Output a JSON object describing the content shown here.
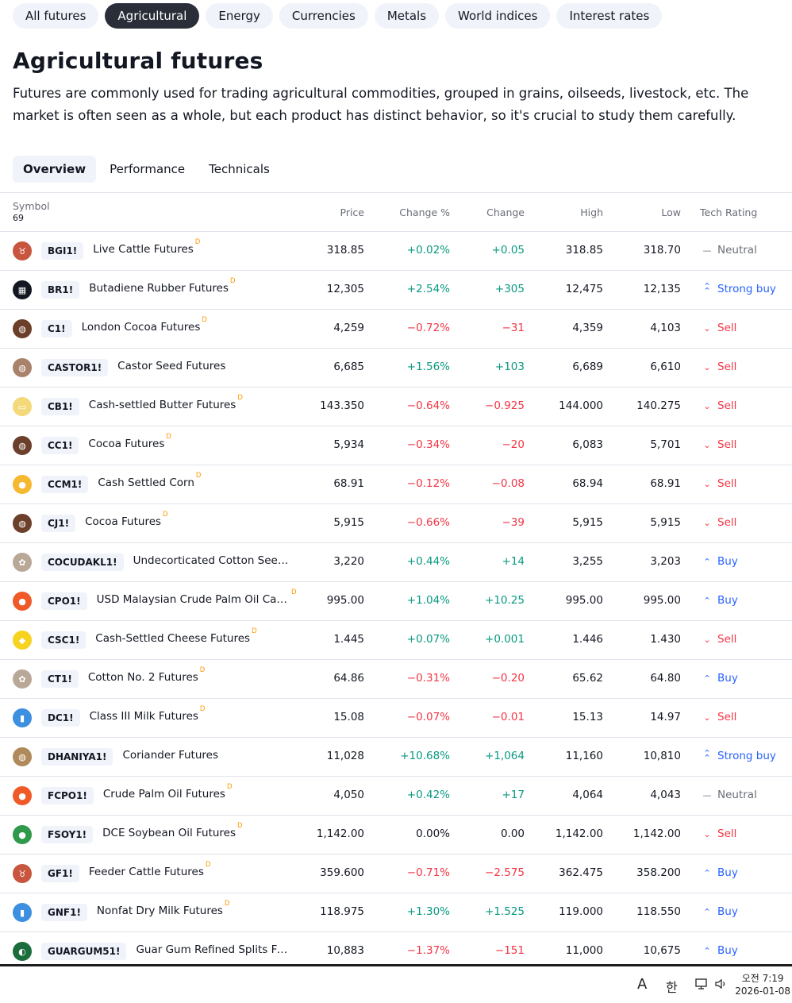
{
  "categories": [
    "All futures",
    "Agricultural",
    "Energy",
    "Currencies",
    "Metals",
    "World indices",
    "Interest rates"
  ],
  "active_category": "Agricultural",
  "title": "Agricultural futures",
  "description": "Futures are commonly used for trading agricultural commodities, grouped in grains, oilseeds, livestock, etc. The market is often seen as a whole, but each product has distinct behavior, so it's crucial to study them carefully.",
  "view_tabs": [
    "Overview",
    "Performance",
    "Technicals"
  ],
  "active_view": "Overview",
  "table": {
    "headers": {
      "symbol": "Symbol",
      "count": "69",
      "price": "Price",
      "change_pct": "Change %",
      "change": "Change",
      "high": "High",
      "low": "Low",
      "rating": "Tech Rating"
    },
    "delayed_mark": "D",
    "rows": [
      {
        "ticker": "BGI1!",
        "name": "Live Cattle Futures",
        "delayed": true,
        "price": "318.85",
        "change_pct": "+0.02%",
        "change": "+0.05",
        "high": "318.85",
        "low": "318.70",
        "rating": "Neutral",
        "dir": "pos",
        "rating_type": "neutral",
        "logo": {
          "icon": "cattle-icon",
          "color": "#c8553d",
          "glyph": "♉"
        }
      },
      {
        "ticker": "BR1!",
        "name": "Butadiene Rubber Futures",
        "delayed": true,
        "price": "12,305",
        "change_pct": "+2.54%",
        "change": "+305",
        "high": "12,475",
        "low": "12,135",
        "rating": "Strong buy",
        "dir": "pos",
        "rating_type": "strong-buy",
        "logo": {
          "icon": "exchange-logo-icon",
          "color": "#131722",
          "glyph": "▦"
        }
      },
      {
        "ticker": "C1!",
        "name": "London Cocoa Futures",
        "delayed": true,
        "price": "4,259",
        "change_pct": "−0.72%",
        "change": "−31",
        "high": "4,359",
        "low": "4,103",
        "rating": "Sell",
        "dir": "neg",
        "rating_type": "sell",
        "logo": {
          "icon": "cocoa-bean-icon",
          "color": "#6b3f2a",
          "glyph": "◍"
        }
      },
      {
        "ticker": "CASTOR1!",
        "name": "Castor Seed Futures",
        "delayed": false,
        "price": "6,685",
        "change_pct": "+1.56%",
        "change": "+103",
        "high": "6,689",
        "low": "6,610",
        "rating": "Sell",
        "dir": "pos",
        "rating_type": "sell",
        "logo": {
          "icon": "seed-icon",
          "color": "#a8826a",
          "glyph": "◍"
        }
      },
      {
        "ticker": "CB1!",
        "name": "Cash-settled Butter Futures",
        "delayed": true,
        "price": "143.350",
        "change_pct": "−0.64%",
        "change": "−0.925",
        "high": "144.000",
        "low": "140.275",
        "rating": "Sell",
        "dir": "neg",
        "rating_type": "sell",
        "logo": {
          "icon": "butter-icon",
          "color": "#f3d97a",
          "glyph": "▭"
        }
      },
      {
        "ticker": "CC1!",
        "name": "Cocoa Futures",
        "delayed": true,
        "price": "5,934",
        "change_pct": "−0.34%",
        "change": "−20",
        "high": "6,083",
        "low": "5,701",
        "rating": "Sell",
        "dir": "neg",
        "rating_type": "sell",
        "logo": {
          "icon": "cocoa-bean-icon",
          "color": "#6b3f2a",
          "glyph": "◍"
        }
      },
      {
        "ticker": "CCM1!",
        "name": "Cash Settled Corn",
        "delayed": true,
        "price": "68.91",
        "change_pct": "−0.12%",
        "change": "−0.08",
        "high": "68.94",
        "low": "68.91",
        "rating": "Sell",
        "dir": "neg",
        "rating_type": "sell",
        "logo": {
          "icon": "corn-icon",
          "color": "#f5b82e",
          "glyph": "●"
        }
      },
      {
        "ticker": "CJ1!",
        "name": "Cocoa Futures",
        "delayed": true,
        "price": "5,915",
        "change_pct": "−0.66%",
        "change": "−39",
        "high": "5,915",
        "low": "5,915",
        "rating": "Sell",
        "dir": "neg",
        "rating_type": "sell",
        "logo": {
          "icon": "cocoa-bean-icon",
          "color": "#6b3f2a",
          "glyph": "◍"
        }
      },
      {
        "ticker": "COCUDAKL1!",
        "name": "Undecorticated Cotton Seed Oi…",
        "delayed": false,
        "price": "3,220",
        "change_pct": "+0.44%",
        "change": "+14",
        "high": "3,255",
        "low": "3,203",
        "rating": "Buy",
        "dir": "pos",
        "rating_type": "buy",
        "logo": {
          "icon": "cotton-icon",
          "color": "#b9a898",
          "glyph": "✿"
        }
      },
      {
        "ticker": "CPO1!",
        "name": "USD Malaysian Crude Palm Oil Cale…",
        "delayed": true,
        "price": "995.00",
        "change_pct": "+1.04%",
        "change": "+10.25",
        "high": "995.00",
        "low": "995.00",
        "rating": "Buy",
        "dir": "pos",
        "rating_type": "buy",
        "logo": {
          "icon": "oil-drop-icon",
          "color": "#f05a28",
          "glyph": "●"
        }
      },
      {
        "ticker": "CSC1!",
        "name": "Cash-Settled Cheese Futures",
        "delayed": true,
        "price": "1.445",
        "change_pct": "+0.07%",
        "change": "+0.001",
        "high": "1.446",
        "low": "1.430",
        "rating": "Sell",
        "dir": "pos",
        "rating_type": "sell",
        "logo": {
          "icon": "cheese-icon",
          "color": "#f7d21e",
          "glyph": "◆"
        }
      },
      {
        "ticker": "CT1!",
        "name": "Cotton No. 2 Futures",
        "delayed": true,
        "price": "64.86",
        "change_pct": "−0.31%",
        "change": "−0.20",
        "high": "65.62",
        "low": "64.80",
        "rating": "Buy",
        "dir": "neg",
        "rating_type": "buy",
        "logo": {
          "icon": "cotton-icon",
          "color": "#b9a898",
          "glyph": "✿"
        }
      },
      {
        "ticker": "DC1!",
        "name": "Class III Milk Futures",
        "delayed": true,
        "price": "15.08",
        "change_pct": "−0.07%",
        "change": "−0.01",
        "high": "15.13",
        "low": "14.97",
        "rating": "Sell",
        "dir": "neg",
        "rating_type": "sell",
        "logo": {
          "icon": "milk-bottle-icon",
          "color": "#3d8fe0",
          "glyph": "▮"
        }
      },
      {
        "ticker": "DHANIYA1!",
        "name": "Coriander Futures",
        "delayed": false,
        "price": "11,028",
        "change_pct": "+10.68%",
        "change": "+1,064",
        "high": "11,160",
        "low": "10,810",
        "rating": "Strong buy",
        "dir": "pos",
        "rating_type": "strong-buy",
        "logo": {
          "icon": "seed-icon",
          "color": "#b08a5a",
          "glyph": "◍"
        }
      },
      {
        "ticker": "FCPO1!",
        "name": "Crude Palm Oil Futures",
        "delayed": true,
        "price": "4,050",
        "change_pct": "+0.42%",
        "change": "+17",
        "high": "4,064",
        "low": "4,043",
        "rating": "Neutral",
        "dir": "pos",
        "rating_type": "neutral",
        "logo": {
          "icon": "oil-drop-icon",
          "color": "#f05a28",
          "glyph": "●"
        }
      },
      {
        "ticker": "FSOY1!",
        "name": "DCE Soybean Oil Futures",
        "delayed": true,
        "price": "1,142.00",
        "change_pct": "0.00%",
        "change": "0.00",
        "high": "1,142.00",
        "low": "1,142.00",
        "rating": "Sell",
        "dir": "neu",
        "rating_type": "sell",
        "logo": {
          "icon": "oil-drop-icon",
          "color": "#2e9a4a",
          "glyph": "●"
        }
      },
      {
        "ticker": "GF1!",
        "name": "Feeder Cattle Futures",
        "delayed": true,
        "price": "359.600",
        "change_pct": "−0.71%",
        "change": "−2.575",
        "high": "362.475",
        "low": "358.200",
        "rating": "Buy",
        "dir": "neg",
        "rating_type": "buy",
        "logo": {
          "icon": "cattle-icon",
          "color": "#c8553d",
          "glyph": "♉"
        }
      },
      {
        "ticker": "GNF1!",
        "name": "Nonfat Dry Milk Futures",
        "delayed": true,
        "price": "118.975",
        "change_pct": "+1.30%",
        "change": "+1.525",
        "high": "119.000",
        "low": "118.550",
        "rating": "Buy",
        "dir": "pos",
        "rating_type": "buy",
        "logo": {
          "icon": "milk-bottle-icon",
          "color": "#3d8fe0",
          "glyph": "▮"
        }
      },
      {
        "ticker": "GUARGUM51!",
        "name": "Guar Gum Refined Splits Futures",
        "delayed": false,
        "price": "10,883",
        "change_pct": "−1.37%",
        "change": "−151",
        "high": "11,000",
        "low": "10,675",
        "rating": "Buy",
        "dir": "neg",
        "rating_type": "buy",
        "logo": {
          "icon": "exchange-logo-icon",
          "color": "#1b6e3b",
          "glyph": "◐"
        }
      }
    ]
  },
  "taskbar": {
    "ime_mode": "A",
    "ime_lang": "한",
    "time": "오전 7:19",
    "date": "2026-01-08"
  }
}
